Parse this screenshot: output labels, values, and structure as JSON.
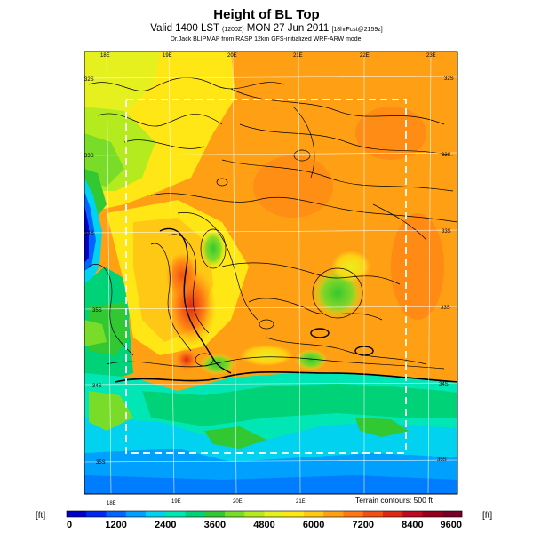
{
  "header": {
    "title": "Height of BL Top",
    "subtitle_main": "Valid 1400 LST",
    "subtitle_small1": "(1200Z)",
    "subtitle_date": "MON 27 Jun 2011",
    "subtitle_small2": "[18hrFcst@2159z]",
    "credit": "Dr.Jack BLIPMAP from RASP 12km GFS-initialized WRF-ARW model"
  },
  "map": {
    "lon_labels_top": [
      "18E",
      "19E",
      "20E",
      "21E",
      "22E",
      "23E"
    ],
    "lon_labels_bottom": [
      "18E",
      "19E",
      "20E",
      "21E"
    ],
    "lat_labels_left": [
      "32S",
      "33S",
      "34S",
      "35S",
      "34S",
      "35S"
    ],
    "lat_labels_right": [
      "32S",
      "33S",
      "33S",
      "33S",
      "34S",
      "35S"
    ],
    "terrain_note": "Terrain contours: 500 ft"
  },
  "colorbar": {
    "unit_left": "[ft]",
    "unit_right": "[ft]",
    "tick_labels": [
      "0",
      "1200",
      "2400",
      "3600",
      "4800",
      "6000",
      "7200",
      "8400",
      "9600"
    ],
    "colors": [
      "#0000c8",
      "#0028f0",
      "#0064ff",
      "#00a0ff",
      "#00d2f0",
      "#00e6b4",
      "#00d278",
      "#32c832",
      "#78dc28",
      "#b4eb1e",
      "#e6f01e",
      "#ffe614",
      "#ffc814",
      "#ffa014",
      "#ff7814",
      "#f05014",
      "#dc2814",
      "#be0a1e",
      "#96001e",
      "#780028"
    ]
  }
}
